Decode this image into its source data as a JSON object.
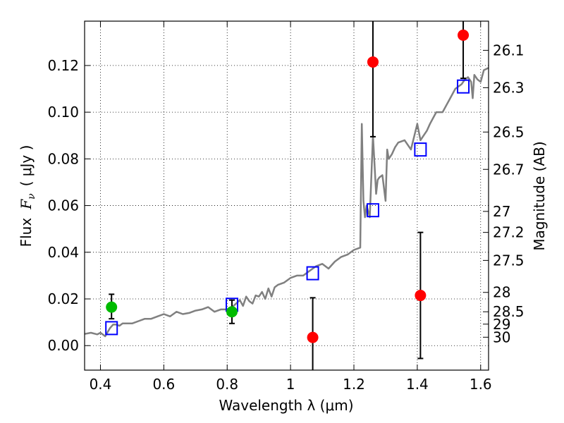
{
  "chart_data": {
    "type": "scatter",
    "xlabel": "Wavelength  λ (μm)",
    "ylabel_left_prefix": "Flux",
    "ylabel_left_symbol": "F",
    "ylabel_left_sub": "ν",
    "ylabel_left_unit": "( μJy )",
    "ylabel_right": "Magnitude (AB)",
    "xlim": [
      0.35,
      1.625
    ],
    "ylim": [
      -0.0105,
      0.139
    ],
    "grid": true,
    "x_ticks": [
      0.4,
      0.6,
      0.8,
      1.0,
      1.2,
      1.4,
      1.6
    ],
    "x_tick_labels": [
      "0.4",
      "0.6",
      "0.8",
      "1",
      "1.2",
      "1.4",
      "1.6"
    ],
    "y_ticks": [
      0.0,
      0.02,
      0.04,
      0.06,
      0.08,
      0.1,
      0.12
    ],
    "y_tick_labels": [
      "0.00",
      "0.02",
      "0.04",
      "0.06",
      "0.08",
      "0.10",
      "0.12"
    ],
    "right_ticks": [
      {
        "label": "26.1",
        "flux": 0.1265
      },
      {
        "label": "26.3",
        "flux": 0.1105
      },
      {
        "label": "26.5",
        "flux": 0.0915
      },
      {
        "label": "26.7",
        "flux": 0.0755
      },
      {
        "label": "27",
        "flux": 0.0575
      },
      {
        "label": "27.2",
        "flux": 0.0485
      },
      {
        "label": "27.5",
        "flux": 0.0365
      },
      {
        "label": "28",
        "flux": 0.0228
      },
      {
        "label": "28.5",
        "flux": 0.0145
      },
      {
        "label": "29",
        "flux": 0.0092
      },
      {
        "label": "30",
        "flux": 0.0036
      }
    ],
    "series": [
      {
        "name": "model spectrum",
        "kind": "line",
        "color": "#808080",
        "x": [
          0.35,
          0.37,
          0.39,
          0.4,
          0.41,
          0.415,
          0.43,
          0.44,
          0.45,
          0.46,
          0.47,
          0.48,
          0.5,
          0.52,
          0.54,
          0.56,
          0.58,
          0.6,
          0.62,
          0.64,
          0.66,
          0.68,
          0.7,
          0.72,
          0.74,
          0.76,
          0.78,
          0.8,
          0.82,
          0.84,
          0.85,
          0.86,
          0.87,
          0.88,
          0.89,
          0.9,
          0.91,
          0.92,
          0.93,
          0.94,
          0.95,
          0.96,
          0.98,
          1.0,
          1.02,
          1.04,
          1.06,
          1.08,
          1.1,
          1.12,
          1.14,
          1.16,
          1.18,
          1.2,
          1.22,
          1.225,
          1.23,
          1.235,
          1.24,
          1.25,
          1.26,
          1.265,
          1.27,
          1.275,
          1.28,
          1.29,
          1.3,
          1.305,
          1.31,
          1.32,
          1.33,
          1.34,
          1.36,
          1.38,
          1.4,
          1.41,
          1.42,
          1.43,
          1.44,
          1.46,
          1.48,
          1.5,
          1.52,
          1.54,
          1.55,
          1.56,
          1.57,
          1.575,
          1.58,
          1.59,
          1.6,
          1.61,
          1.625
        ],
        "y": [
          0.005,
          0.0055,
          0.0048,
          0.0055,
          0.0045,
          0.004,
          0.0075,
          0.009,
          0.009,
          0.0085,
          0.0095,
          0.0095,
          0.0095,
          0.0105,
          0.0115,
          0.0115,
          0.0125,
          0.0135,
          0.0125,
          0.0145,
          0.0135,
          0.014,
          0.015,
          0.0155,
          0.0165,
          0.0145,
          0.0155,
          0.0155,
          0.017,
          0.0195,
          0.017,
          0.021,
          0.019,
          0.018,
          0.0215,
          0.021,
          0.023,
          0.02,
          0.0245,
          0.021,
          0.025,
          0.026,
          0.027,
          0.029,
          0.03,
          0.03,
          0.032,
          0.034,
          0.035,
          0.033,
          0.036,
          0.038,
          0.039,
          0.041,
          0.042,
          0.095,
          0.062,
          0.055,
          0.06,
          0.055,
          0.09,
          0.078,
          0.065,
          0.071,
          0.072,
          0.073,
          0.062,
          0.084,
          0.08,
          0.082,
          0.085,
          0.087,
          0.088,
          0.084,
          0.095,
          0.088,
          0.09,
          0.092,
          0.095,
          0.1,
          0.1,
          0.105,
          0.11,
          0.112,
          0.114,
          0.115,
          0.113,
          0.106,
          0.116,
          0.114,
          0.113,
          0.118,
          0.119
        ]
      },
      {
        "name": "model photometry",
        "kind": "open-square",
        "color": "#0000ff",
        "x": [
          0.435,
          0.815,
          1.07,
          1.26,
          1.41,
          1.545
        ],
        "y": [
          0.0075,
          0.0175,
          0.031,
          0.058,
          0.084,
          0.111
        ]
      },
      {
        "name": "observed (green)",
        "kind": "filled-circle",
        "color": "#00bb00",
        "x": [
          0.435,
          0.815
        ],
        "y": [
          0.0165,
          0.0145
        ],
        "yerr_low": [
          0.0115,
          0.0095
        ],
        "yerr_high": [
          0.022,
          0.0195
        ]
      },
      {
        "name": "observed (red)",
        "kind": "filled-circle",
        "color": "#ff0000",
        "x": [
          1.07,
          1.26,
          1.41,
          1.545
        ],
        "y": [
          0.0035,
          0.1215,
          0.0215,
          0.133
        ],
        "yerr_low": [
          -0.0105,
          0.0895,
          -0.0055,
          0.1145
        ],
        "yerr_high": [
          0.0205,
          0.139,
          0.0485,
          0.139
        ]
      }
    ]
  }
}
